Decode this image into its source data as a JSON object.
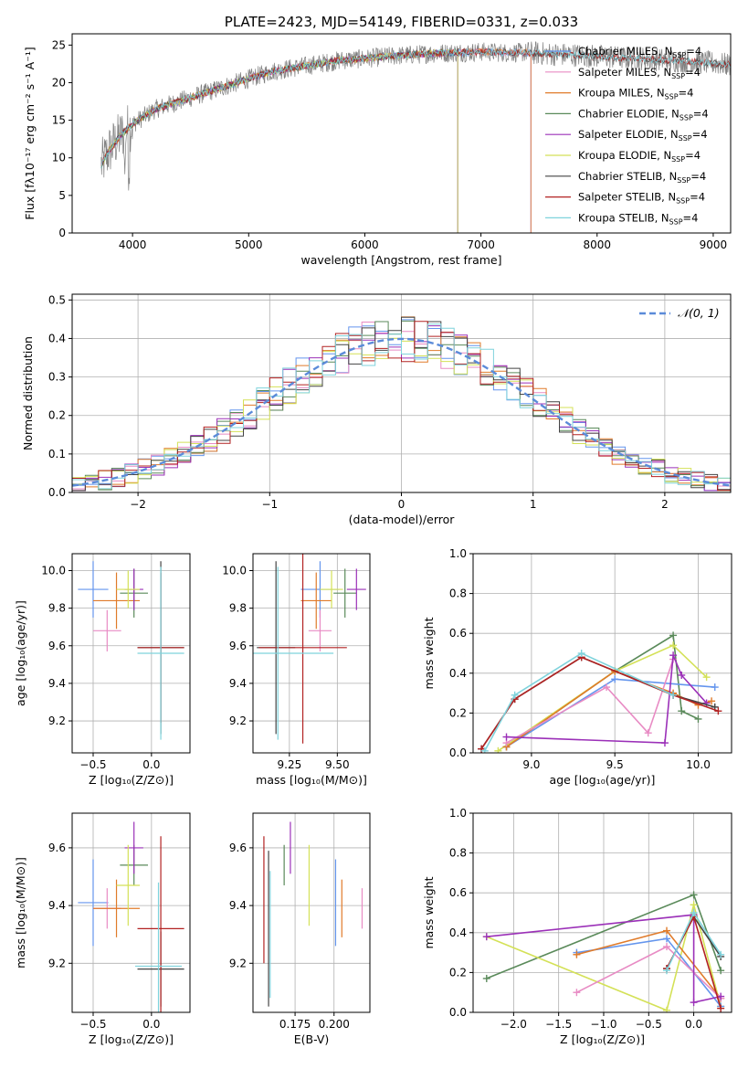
{
  "chart_data": [
    {
      "id": "spectrum",
      "type": "line",
      "title": "PLATE=2423, MJD=54149, FIBERID=0331, z=0.033",
      "xlabel": "wavelength [Angstrom, rest frame]",
      "ylabel": "Flux [fλ10⁻¹⁷ erg cm⁻² s⁻¹ A⁻¹]",
      "xlim": [
        3480,
        9150
      ],
      "ylim": [
        0,
        26.5
      ],
      "xticks": [
        4000,
        5000,
        6000,
        7000,
        8000,
        9000
      ],
      "yticks": [
        0,
        5,
        10,
        15,
        20,
        25
      ],
      "grid": false,
      "legend_position": "top-right",
      "continuum": {
        "x": [
          3730,
          3800,
          3900,
          4000,
          4100,
          4200,
          4400,
          4600,
          4800,
          5000,
          5200,
          5400,
          5600,
          5800,
          6000,
          6200,
          6400,
          6600,
          6800,
          7000,
          7200,
          7400,
          7600,
          7800,
          8000,
          8200,
          8400,
          8600,
          8800,
          9000,
          9100
        ],
        "y": [
          9,
          11,
          13,
          14.5,
          15.5,
          16.5,
          17.5,
          18.5,
          19.5,
          20.5,
          21.5,
          22,
          22.5,
          23,
          23.2,
          23.5,
          23.7,
          23.9,
          24,
          24.1,
          24,
          24,
          23.8,
          23.7,
          23.5,
          23.3,
          23.2,
          23,
          22.8,
          22.6,
          22.4
        ]
      },
      "series": [
        {
          "name": "Chabrier MILES, N",
          "sub": "SSP",
          "suffix": "=4",
          "color": "#6495ed",
          "xmax": 7430
        },
        {
          "name": "Salpeter MILES, N",
          "sub": "SSP",
          "suffix": "=4",
          "color": "#e88bc4",
          "xmax": 7430
        },
        {
          "name": "Kroupa MILES, N",
          "sub": "SSP",
          "suffix": "=4",
          "color": "#e07b2a",
          "xmax": 7430
        },
        {
          "name": "Chabrier ELODIE, N",
          "sub": "SSP",
          "suffix": "=4",
          "color": "#5a8a5a",
          "xmax": 6800
        },
        {
          "name": "Salpeter ELODIE, N",
          "sub": "SSP",
          "suffix": "=4",
          "color": "#9b30b8",
          "xmax": 6800
        },
        {
          "name": "Kroupa ELODIE, N",
          "sub": "SSP",
          "suffix": "=4",
          "color": "#d4e157",
          "xmax": 6800
        },
        {
          "name": "Chabrier STELIB, N",
          "sub": "SSP",
          "suffix": "=4",
          "color": "#444444",
          "xmax": 9150
        },
        {
          "name": "Salpeter STELIB, N",
          "sub": "SSP",
          "suffix": "=4",
          "color": "#b22222",
          "xmax": 9150
        },
        {
          "name": "Kroupa STELIB, N",
          "sub": "SSP",
          "suffix": "=4",
          "color": "#7fd3dc",
          "xmax": 9150
        }
      ],
      "observed_color": "#808080"
    },
    {
      "id": "residuals",
      "type": "line",
      "xlabel": "(data-model)/error",
      "ylabel": "Normed distribution",
      "xlim": [
        -2.5,
        2.5
      ],
      "ylim": [
        0,
        0.515
      ],
      "xticks": [
        -2,
        -1,
        0,
        1,
        2
      ],
      "xtick_labels": [
        "−2",
        "−1",
        "0",
        "1",
        "2"
      ],
      "yticks": [
        0.0,
        0.1,
        0.2,
        0.3,
        0.4,
        0.5
      ],
      "ytick_labels": [
        "0.0",
        "0.1",
        "0.2",
        "0.3",
        "0.4",
        "0.5"
      ],
      "grid": true,
      "legend_position": "top-right",
      "gaussian": {
        "name": "𝒩(0, 1)",
        "color": "#5b8bd9"
      },
      "bin_width": 0.1
    },
    {
      "id": "age-vs-Z",
      "type": "scatter",
      "xlabel": "Z [log₁₀(Z/Z⊙)]",
      "ylabel": "age  [log₁₀(age/yr)]",
      "xlim": [
        -0.68,
        0.33
      ],
      "ylim": [
        9.03,
        10.09
      ],
      "xticks": [
        -0.5,
        0.0
      ],
      "xtick_labels": [
        "−0.5",
        "0.0"
      ],
      "yticks": [
        9.2,
        9.4,
        9.6,
        9.8,
        10.0
      ],
      "ytick_labels": [
        "9.2",
        "9.4",
        "9.6",
        "9.8",
        "10.0"
      ],
      "grid": true,
      "points": [
        {
          "x": -0.5,
          "y": 9.9,
          "xerr": 0.13,
          "yerr": 0.15,
          "color": "#6495ed"
        },
        {
          "x": -0.38,
          "y": 9.68,
          "xerr": 0.12,
          "yerr": 0.11,
          "color": "#e88bc4"
        },
        {
          "x": -0.3,
          "y": 9.84,
          "xerr": 0.2,
          "yerr": 0.15,
          "color": "#e07b2a"
        },
        {
          "x": -0.15,
          "y": 9.88,
          "xerr": 0.12,
          "yerr": 0.13,
          "color": "#5a8a5a"
        },
        {
          "x": -0.15,
          "y": 9.9,
          "xerr": 0.08,
          "yerr": 0.11,
          "color": "#9b30b8"
        },
        {
          "x": -0.2,
          "y": 9.9,
          "xerr": 0.1,
          "yerr": 0.1,
          "color": "#d4e157"
        },
        {
          "x": 0.08,
          "y": 9.59,
          "xerr": 0.2,
          "yerr": 0.46,
          "color": "#444444"
        },
        {
          "x": 0.08,
          "y": 9.59,
          "xerr": 0.2,
          "yerr": 0.4,
          "color": "#b22222"
        },
        {
          "x": 0.08,
          "y": 9.56,
          "xerr": 0.2,
          "yerr": 0.46,
          "color": "#7fd3dc"
        }
      ]
    },
    {
      "id": "age-vs-mass",
      "type": "scatter",
      "xlabel": "mass [log₁₀(M/M⊙)]",
      "xlim": [
        9.06,
        9.67
      ],
      "ylim": [
        9.03,
        10.09
      ],
      "xticks": [
        9.25,
        9.5
      ],
      "xtick_labels": [
        "9.25",
        "9.50"
      ],
      "yticks": [
        9.2,
        9.4,
        9.6,
        9.8,
        10.0
      ],
      "ytick_labels": [
        "9.2",
        "9.4",
        "9.6",
        "9.8",
        "10.0"
      ],
      "grid": true,
      "points": [
        {
          "x": 9.41,
          "y": 9.9,
          "xerr": 0.1,
          "yerr": 0.15,
          "color": "#6495ed"
        },
        {
          "x": 9.41,
          "y": 9.68,
          "xerr": 0.06,
          "yerr": 0.11,
          "color": "#e88bc4"
        },
        {
          "x": 9.39,
          "y": 9.84,
          "xerr": 0.08,
          "yerr": 0.15,
          "color": "#e07b2a"
        },
        {
          "x": 9.54,
          "y": 9.88,
          "xerr": 0.06,
          "yerr": 0.13,
          "color": "#5a8a5a"
        },
        {
          "x": 9.6,
          "y": 9.9,
          "xerr": 0.05,
          "yerr": 0.11,
          "color": "#9b30b8"
        },
        {
          "x": 9.47,
          "y": 9.9,
          "xerr": 0.06,
          "yerr": 0.1,
          "color": "#d4e157"
        },
        {
          "x": 9.18,
          "y": 9.59,
          "xerr": 0.1,
          "yerr": 0.46,
          "color": "#444444"
        },
        {
          "x": 9.32,
          "y": 9.59,
          "xerr": 0.23,
          "yerr": 0.51,
          "color": "#b22222"
        },
        {
          "x": 9.19,
          "y": 9.56,
          "xerr": 0.29,
          "yerr": 0.46,
          "color": "#7fd3dc"
        }
      ]
    },
    {
      "id": "mass-weight-vs-age",
      "type": "line",
      "xlabel": "age  [log₁₀(age/yr)]",
      "ylabel": "mass weight",
      "xlim": [
        8.65,
        10.2
      ],
      "ylim": [
        0,
        1
      ],
      "xticks": [
        9.0,
        9.5,
        10.0
      ],
      "xtick_labels": [
        "9.0",
        "9.5",
        "10.0"
      ],
      "yticks": [
        0.0,
        0.2,
        0.4,
        0.6,
        0.8,
        1.0
      ],
      "ytick_labels": [
        "0.0",
        "0.2",
        "0.4",
        "0.6",
        "0.8",
        "1.0"
      ],
      "grid": true,
      "series": [
        {
          "color": "#5a8a5a",
          "x": [
            8.85,
            9.5,
            9.85,
            9.9,
            10.0
          ],
          "y": [
            0.03,
            0.41,
            0.59,
            0.21,
            0.17
          ]
        },
        {
          "color": "#d4e157",
          "x": [
            8.8,
            9.5,
            9.85,
            10.05
          ],
          "y": [
            0.01,
            0.41,
            0.54,
            0.38
          ]
        },
        {
          "color": "#6495ed",
          "x": [
            8.85,
            9.5,
            10.1
          ],
          "y": [
            0.03,
            0.37,
            0.33
          ]
        },
        {
          "color": "#e07b2a",
          "x": [
            8.85,
            9.5,
            9.85,
            10.0,
            10.08
          ],
          "y": [
            0.03,
            0.41,
            0.3,
            0.24,
            0.26
          ]
        },
        {
          "color": "#e88bc4",
          "x": [
            8.85,
            9.45,
            9.7,
            9.85
          ],
          "y": [
            0.05,
            0.33,
            0.1,
            0.47
          ]
        },
        {
          "color": "#9b30b8",
          "x": [
            8.85,
            9.8,
            9.85,
            9.9,
            10.05
          ],
          "y": [
            0.08,
            0.05,
            0.49,
            0.39,
            0.25
          ]
        },
        {
          "color": "#444444",
          "x": [
            8.7,
            8.9,
            9.3,
            9.85,
            10.1
          ],
          "y": [
            0.02,
            0.27,
            0.48,
            0.29,
            0.23
          ]
        },
        {
          "color": "#b22222",
          "x": [
            8.7,
            8.9,
            9.3,
            9.85,
            10.12
          ],
          "y": [
            0.02,
            0.27,
            0.48,
            0.29,
            0.21
          ]
        },
        {
          "color": "#7fd3dc",
          "x": [
            8.72,
            8.9,
            9.3,
            9.85
          ],
          "y": [
            0.01,
            0.29,
            0.5,
            0.29
          ]
        }
      ]
    },
    {
      "id": "mass-vs-Z",
      "type": "scatter",
      "xlabel": "Z [log₁₀(Z/Z⊙)]",
      "ylabel": "mass [log₁₀(M/M⊙)]",
      "xlim": [
        -0.68,
        0.33
      ],
      "ylim": [
        9.03,
        9.72
      ],
      "xticks": [
        -0.5,
        0.0
      ],
      "xtick_labels": [
        "−0.5",
        "0.0"
      ],
      "yticks": [
        9.2,
        9.4,
        9.6
      ],
      "ytick_labels": [
        "9.2",
        "9.4",
        "9.6"
      ],
      "grid": true,
      "points": [
        {
          "x": -0.5,
          "y": 9.41,
          "xerr": 0.13,
          "yerr": 0.15,
          "color": "#6495ed"
        },
        {
          "x": -0.38,
          "y": 9.39,
          "xerr": 0.12,
          "yerr": 0.07,
          "color": "#e88bc4"
        },
        {
          "x": -0.3,
          "y": 9.39,
          "xerr": 0.2,
          "yerr": 0.1,
          "color": "#e07b2a"
        },
        {
          "x": -0.15,
          "y": 9.54,
          "xerr": 0.12,
          "yerr": 0.07,
          "color": "#5a8a5a"
        },
        {
          "x": -0.15,
          "y": 9.6,
          "xerr": 0.08,
          "yerr": 0.09,
          "color": "#9b30b8"
        },
        {
          "x": -0.2,
          "y": 9.47,
          "xerr": 0.1,
          "yerr": 0.14,
          "color": "#d4e157"
        },
        {
          "x": 0.08,
          "y": 9.18,
          "xerr": 0.2,
          "yerr": 0.13,
          "color": "#444444"
        },
        {
          "x": 0.08,
          "y": 9.32,
          "xerr": 0.2,
          "yerr": 0.32,
          "color": "#b22222"
        },
        {
          "x": 0.06,
          "y": 9.19,
          "xerr": 0.2,
          "yerr": 0.29,
          "color": "#7fd3dc"
        }
      ]
    },
    {
      "id": "mass-vs-EBV",
      "type": "scatter",
      "xlabel": "E(B-V)",
      "xlim": [
        0.148,
        0.223
      ],
      "ylim": [
        9.03,
        9.72
      ],
      "xticks": [
        0.175,
        0.2
      ],
      "xtick_labels": [
        "0.175",
        "0.200"
      ],
      "yticks": [
        9.2,
        9.4,
        9.6
      ],
      "ytick_labels": [
        "9.2",
        "9.4",
        "9.6"
      ],
      "grid": true,
      "points": [
        {
          "x": 0.201,
          "y": 9.41,
          "xerr": 0,
          "yerr": 0.15,
          "color": "#6495ed"
        },
        {
          "x": 0.218,
          "y": 9.39,
          "xerr": 0,
          "yerr": 0.07,
          "color": "#e88bc4"
        },
        {
          "x": 0.205,
          "y": 9.39,
          "xerr": 0,
          "yerr": 0.1,
          "color": "#e07b2a"
        },
        {
          "x": 0.168,
          "y": 9.54,
          "xerr": 0,
          "yerr": 0.07,
          "color": "#5a8a5a"
        },
        {
          "x": 0.172,
          "y": 9.6,
          "xerr": 0,
          "yerr": 0.09,
          "color": "#9b30b8"
        },
        {
          "x": 0.184,
          "y": 9.47,
          "xerr": 0,
          "yerr": 0.14,
          "color": "#d4e157"
        },
        {
          "x": 0.158,
          "y": 9.32,
          "xerr": 0,
          "yerr": 0.27,
          "color": "#444444"
        },
        {
          "x": 0.155,
          "y": 9.42,
          "xerr": 0,
          "yerr": 0.22,
          "color": "#b22222"
        },
        {
          "x": 0.159,
          "y": 9.3,
          "xerr": 0,
          "yerr": 0.22,
          "color": "#7fd3dc"
        }
      ]
    },
    {
      "id": "mass-weight-vs-Z",
      "type": "line",
      "xlabel": "Z [log₁₀(Z/Z⊙)]",
      "ylabel": "mass weight",
      "xlim": [
        -2.45,
        0.42
      ],
      "ylim": [
        0,
        1
      ],
      "xticks": [
        -2.0,
        -1.5,
        -1.0,
        -0.5,
        0.0
      ],
      "xtick_labels": [
        "−2.0",
        "−1.5",
        "−1.0",
        "−0.5",
        "0.0"
      ],
      "yticks": [
        0.0,
        0.2,
        0.4,
        0.6,
        0.8,
        1.0
      ],
      "ytick_labels": [
        "0.0",
        "0.2",
        "0.4",
        "0.6",
        "0.8",
        "1.0"
      ],
      "grid": true,
      "series": [
        {
          "color": "#5a8a5a",
          "x": [
            -2.3,
            0.0,
            0.3
          ],
          "y": [
            0.17,
            0.59,
            0.21
          ]
        },
        {
          "color": "#d4e157",
          "x": [
            -2.3,
            -0.3,
            0.0,
            0.3
          ],
          "y": [
            0.38,
            0.01,
            0.54,
            0.03
          ]
        },
        {
          "color": "#6495ed",
          "x": [
            -1.3,
            -0.3,
            0.3
          ],
          "y": [
            0.3,
            0.37,
            0.03
          ]
        },
        {
          "color": "#e07b2a",
          "x": [
            -1.3,
            -0.3,
            0.3
          ],
          "y": [
            0.29,
            0.41,
            0.07
          ]
        },
        {
          "color": "#e88bc4",
          "x": [
            -1.3,
            -0.3,
            0.3
          ],
          "y": [
            0.1,
            0.33,
            0.07
          ]
        },
        {
          "color": "#9b30b8",
          "x": [
            -2.3,
            0.0,
            0.0,
            0.3
          ],
          "y": [
            0.38,
            0.49,
            0.05,
            0.08
          ]
        },
        {
          "color": "#444444",
          "x": [
            -0.3,
            0.0,
            0.3
          ],
          "y": [
            0.22,
            0.48,
            0.28
          ]
        },
        {
          "color": "#b22222",
          "x": [
            -0.3,
            0.0,
            0.3
          ],
          "y": [
            0.22,
            0.48,
            0.02
          ]
        },
        {
          "color": "#7fd3dc",
          "x": [
            -0.3,
            0.0,
            0.3
          ],
          "y": [
            0.21,
            0.5,
            0.29
          ]
        }
      ]
    }
  ]
}
